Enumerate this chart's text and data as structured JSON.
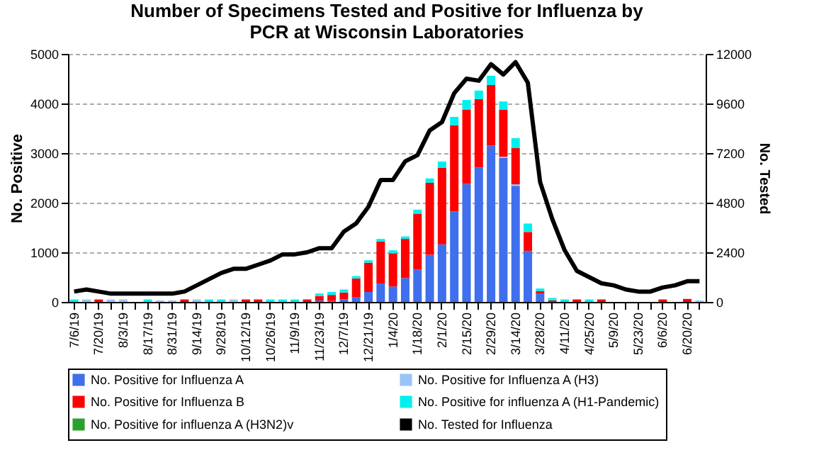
{
  "chart_data": {
    "type": "bar",
    "title": [
      "Number of Specimens Tested and Positive for Influenza by",
      "PCR at Wisconsin Laboratories"
    ],
    "ylabel": "No. Positive",
    "y2label": "No. Tested",
    "categories": [
      "7/6/19",
      null,
      "7/20/19",
      null,
      "8/3/19",
      null,
      "8/17/19",
      null,
      "8/31/19",
      null,
      "9/14/19",
      null,
      "9/28/19",
      null,
      "10/12/19",
      null,
      "10/26/19",
      null,
      "11/9/19",
      null,
      "11/23/19",
      null,
      "12/7/19",
      null,
      "12/21/19",
      null,
      "1/4/20",
      null,
      "1/18/20",
      null,
      "2/1/20",
      null,
      "2/15/20",
      null,
      "2/29/20",
      null,
      "3/14/20",
      null,
      "3/28/20",
      null,
      "4/11/20",
      null,
      "4/25/20",
      null,
      "5/9/20",
      null,
      "5/23/20",
      null,
      "6/6/20",
      null,
      "6/20/20",
      null
    ],
    "stacked": true,
    "series": [
      {
        "name": "No. Positive for Influenza A",
        "color": "#3f6fec",
        "values": [
          0,
          0,
          0,
          0,
          0,
          0,
          0,
          0,
          0,
          0,
          0,
          0,
          0,
          0,
          0,
          0,
          0,
          0,
          0,
          0,
          30,
          20,
          50,
          90,
          200,
          370,
          310,
          480,
          650,
          950,
          1160,
          1820,
          2380,
          2710,
          3150,
          2900,
          2340,
          1030,
          170,
          0,
          0,
          0,
          0,
          0,
          0,
          0,
          0,
          0,
          0,
          0,
          0,
          0
        ]
      },
      {
        "name": "No. Positive for Influenza A (H3)",
        "color": "#99c4f8",
        "values": [
          0,
          50,
          0,
          50,
          50,
          0,
          0,
          30,
          30,
          0,
          50,
          0,
          0,
          50,
          0,
          0,
          0,
          0,
          0,
          0,
          0,
          0,
          0,
          0,
          0,
          0,
          0,
          0,
          0,
          0,
          0,
          0,
          0,
          0,
          0,
          30,
          30,
          0,
          0,
          0,
          0,
          0,
          0,
          0,
          0,
          0,
          0,
          0,
          0,
          0,
          0,
          30
        ]
      },
      {
        "name": "No. Positive for Influenza B",
        "color": "#ff0000",
        "values": [
          0,
          0,
          50,
          0,
          0,
          0,
          0,
          0,
          0,
          50,
          0,
          0,
          0,
          0,
          50,
          50,
          0,
          0,
          0,
          50,
          90,
          120,
          140,
          380,
          590,
          850,
          670,
          790,
          1130,
          1450,
          1540,
          1740,
          1500,
          1380,
          1220,
          940,
          730,
          380,
          50,
          30,
          0,
          50,
          0,
          50,
          0,
          0,
          0,
          0,
          50,
          0,
          60,
          0
        ]
      },
      {
        "name": "No. Positive for influenza A (H1-Pandemic)",
        "color": "#00f0f0",
        "values": [
          50,
          0,
          0,
          0,
          0,
          0,
          50,
          0,
          0,
          0,
          0,
          50,
          50,
          0,
          0,
          0,
          50,
          50,
          50,
          0,
          50,
          60,
          60,
          50,
          50,
          50,
          60,
          50,
          80,
          90,
          130,
          170,
          190,
          170,
          190,
          170,
          200,
          170,
          50,
          50,
          50,
          0,
          50,
          0,
          0,
          0,
          0,
          0,
          0,
          0,
          0,
          0
        ]
      },
      {
        "name": "No. Positive for influenza A (H3N2)v",
        "color": "#2ca02c",
        "values": [
          0,
          0,
          0,
          0,
          0,
          0,
          0,
          0,
          0,
          0,
          0,
          0,
          0,
          0,
          0,
          0,
          0,
          0,
          0,
          0,
          0,
          0,
          0,
          0,
          0,
          0,
          0,
          0,
          0,
          0,
          0,
          0,
          0,
          0,
          0,
          0,
          0,
          0,
          0,
          0,
          0,
          0,
          0,
          0,
          0,
          0,
          0,
          0,
          0,
          0,
          0,
          0
        ]
      },
      {
        "name": "No. Tested for Influenza",
        "color": "#000000",
        "type": "line",
        "axis": "y2",
        "values": [
          500,
          600,
          500,
          400,
          400,
          400,
          400,
          400,
          400,
          500,
          800,
          1100,
          1400,
          1600,
          1600,
          1800,
          2000,
          2300,
          2300,
          2400,
          2600,
          2600,
          3400,
          3800,
          4600,
          5900,
          5900,
          6800,
          7100,
          8300,
          8700,
          10100,
          10800,
          10700,
          11500,
          11000,
          11600,
          10600,
          5800,
          4000,
          2500,
          1500,
          1200,
          900,
          800,
          600,
          500,
          500,
          700,
          800,
          1000,
          1000
        ]
      }
    ],
    "ylim": [
      0,
      5000
    ],
    "yticks": [
      0,
      1000,
      2000,
      3000,
      4000,
      5000
    ],
    "y2lim": [
      0,
      12000
    ],
    "y2ticks": [
      0,
      2400,
      4800,
      7200,
      9600,
      12000
    ],
    "grid": "y",
    "legend": "bottom",
    "line_style": "solid",
    "marker": "none"
  }
}
